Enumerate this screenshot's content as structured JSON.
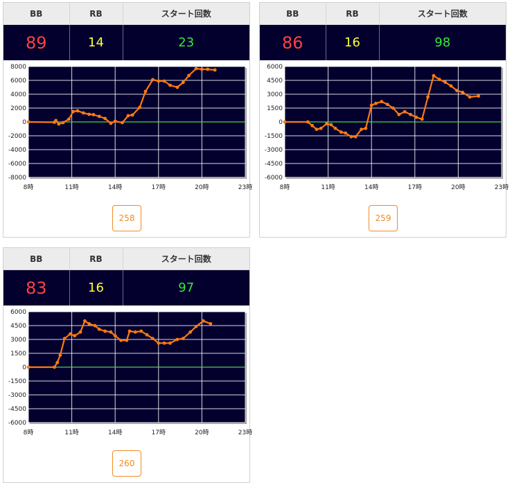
{
  "headers": {
    "bb": "BB",
    "rb": "RB",
    "start": "スタート回数"
  },
  "colors": {
    "bb": "#ff4141",
    "rb": "#ffff3a",
    "start": "#36e836",
    "series": "#ff7a10",
    "zero_line": "#4cd44c",
    "plot_bg": "#03002e",
    "button": "#f08a24"
  },
  "panels": [
    {
      "bb": "89",
      "rb": "14",
      "start": "23",
      "button_label": "258",
      "chart_data": {
        "type": "line",
        "xlim": [
          8,
          23
        ],
        "x_ticks": [
          8,
          11,
          14,
          17,
          20,
          23
        ],
        "x_tick_labels": [
          "8時",
          "11時",
          "14時",
          "17時",
          "20時",
          "23時"
        ],
        "ylim": [
          -8000,
          8000
        ],
        "y_ticks": [
          -8000,
          -6000,
          -4000,
          -2000,
          0,
          2000,
          4000,
          6000,
          8000
        ],
        "y_tick_labels": [
          "-8000",
          "-6000",
          "-4000",
          "-2000",
          "0",
          "2000",
          "4000",
          "6000",
          "8000"
        ],
        "grid": true,
        "points": [
          [
            8.0,
            0
          ],
          [
            9.8,
            -50
          ],
          [
            9.9,
            200
          ],
          [
            10.1,
            -300
          ],
          [
            10.4,
            -100
          ],
          [
            10.8,
            400
          ],
          [
            11.1,
            1500
          ],
          [
            11.4,
            1600
          ],
          [
            11.8,
            1300
          ],
          [
            12.2,
            1100
          ],
          [
            12.5,
            1050
          ],
          [
            12.9,
            800
          ],
          [
            13.3,
            500
          ],
          [
            13.7,
            -200
          ],
          [
            14.0,
            100
          ],
          [
            14.5,
            -100
          ],
          [
            14.9,
            900
          ],
          [
            15.2,
            1000
          ],
          [
            15.7,
            2100
          ],
          [
            16.1,
            4400
          ],
          [
            16.6,
            6100
          ],
          [
            17.0,
            5900
          ],
          [
            17.4,
            5900
          ],
          [
            17.8,
            5300
          ],
          [
            18.3,
            5000
          ],
          [
            18.7,
            5700
          ],
          [
            19.1,
            6700
          ],
          [
            19.6,
            7700
          ],
          [
            20.0,
            7600
          ],
          [
            20.4,
            7600
          ],
          [
            20.9,
            7500
          ]
        ]
      }
    },
    {
      "bb": "86",
      "rb": "16",
      "start": "98",
      "button_label": "259",
      "chart_data": {
        "type": "line",
        "xlim": [
          8,
          23
        ],
        "x_ticks": [
          8,
          11,
          14,
          17,
          20,
          23
        ],
        "x_tick_labels": [
          "8時",
          "11時",
          "14時",
          "17時",
          "20時",
          "23時"
        ],
        "ylim": [
          -6000,
          6000
        ],
        "y_ticks": [
          -6000,
          -4500,
          -3000,
          -1500,
          0,
          1500,
          3000,
          4500,
          6000
        ],
        "y_tick_labels": [
          "-6000",
          "-4500",
          "-3000",
          "-1500",
          "0",
          "1500",
          "3000",
          "4500",
          "6000"
        ],
        "grid": true,
        "points": [
          [
            8.0,
            0
          ],
          [
            9.6,
            0
          ],
          [
            9.9,
            -400
          ],
          [
            10.2,
            -800
          ],
          [
            10.5,
            -700
          ],
          [
            10.9,
            -200
          ],
          [
            11.2,
            -300
          ],
          [
            11.5,
            -700
          ],
          [
            11.9,
            -1100
          ],
          [
            12.2,
            -1200
          ],
          [
            12.6,
            -1600
          ],
          [
            12.9,
            -1600
          ],
          [
            13.3,
            -800
          ],
          [
            13.6,
            -700
          ],
          [
            14.0,
            1800
          ],
          [
            14.3,
            2000
          ],
          [
            14.7,
            2200
          ],
          [
            15.1,
            1900
          ],
          [
            15.5,
            1500
          ],
          [
            15.9,
            800
          ],
          [
            16.3,
            1100
          ],
          [
            16.7,
            800
          ],
          [
            17.1,
            500
          ],
          [
            17.5,
            300
          ],
          [
            17.9,
            2700
          ],
          [
            18.3,
            5000
          ],
          [
            18.7,
            4600
          ],
          [
            19.1,
            4300
          ],
          [
            19.5,
            3900
          ],
          [
            19.9,
            3400
          ],
          [
            20.3,
            3200
          ],
          [
            20.8,
            2700
          ],
          [
            21.4,
            2800
          ]
        ]
      }
    },
    {
      "bb": "83",
      "rb": "16",
      "start": "97",
      "button_label": "260",
      "chart_data": {
        "type": "line",
        "xlim": [
          8,
          23
        ],
        "x_ticks": [
          8,
          11,
          14,
          17,
          20,
          23
        ],
        "x_tick_labels": [
          "8時",
          "11時",
          "14時",
          "17時",
          "20時",
          "23時"
        ],
        "ylim": [
          -6000,
          6000
        ],
        "y_ticks": [
          -6000,
          -4500,
          -3000,
          -1500,
          0,
          1500,
          3000,
          4500,
          6000
        ],
        "y_tick_labels": [
          "-6000",
          "-4500",
          "-3000",
          "-1500",
          "0",
          "1500",
          "3000",
          "4500",
          "6000"
        ],
        "grid": true,
        "points": [
          [
            8.0,
            0
          ],
          [
            9.8,
            0
          ],
          [
            10.0,
            500
          ],
          [
            10.2,
            1300
          ],
          [
            10.5,
            3100
          ],
          [
            10.9,
            3600
          ],
          [
            11.2,
            3400
          ],
          [
            11.6,
            3800
          ],
          [
            11.9,
            5000
          ],
          [
            12.2,
            4700
          ],
          [
            12.6,
            4500
          ],
          [
            12.9,
            4100
          ],
          [
            13.3,
            3900
          ],
          [
            13.7,
            3800
          ],
          [
            14.0,
            3400
          ],
          [
            14.4,
            2900
          ],
          [
            14.8,
            2900
          ],
          [
            15.0,
            3900
          ],
          [
            15.4,
            3800
          ],
          [
            15.8,
            3900
          ],
          [
            16.2,
            3500
          ],
          [
            16.6,
            3100
          ],
          [
            17.0,
            2600
          ],
          [
            17.4,
            2600
          ],
          [
            17.8,
            2600
          ],
          [
            18.3,
            3000
          ],
          [
            18.7,
            3100
          ],
          [
            19.2,
            3800
          ],
          [
            19.6,
            4400
          ],
          [
            20.1,
            5000
          ],
          [
            20.6,
            4700
          ]
        ]
      }
    }
  ]
}
